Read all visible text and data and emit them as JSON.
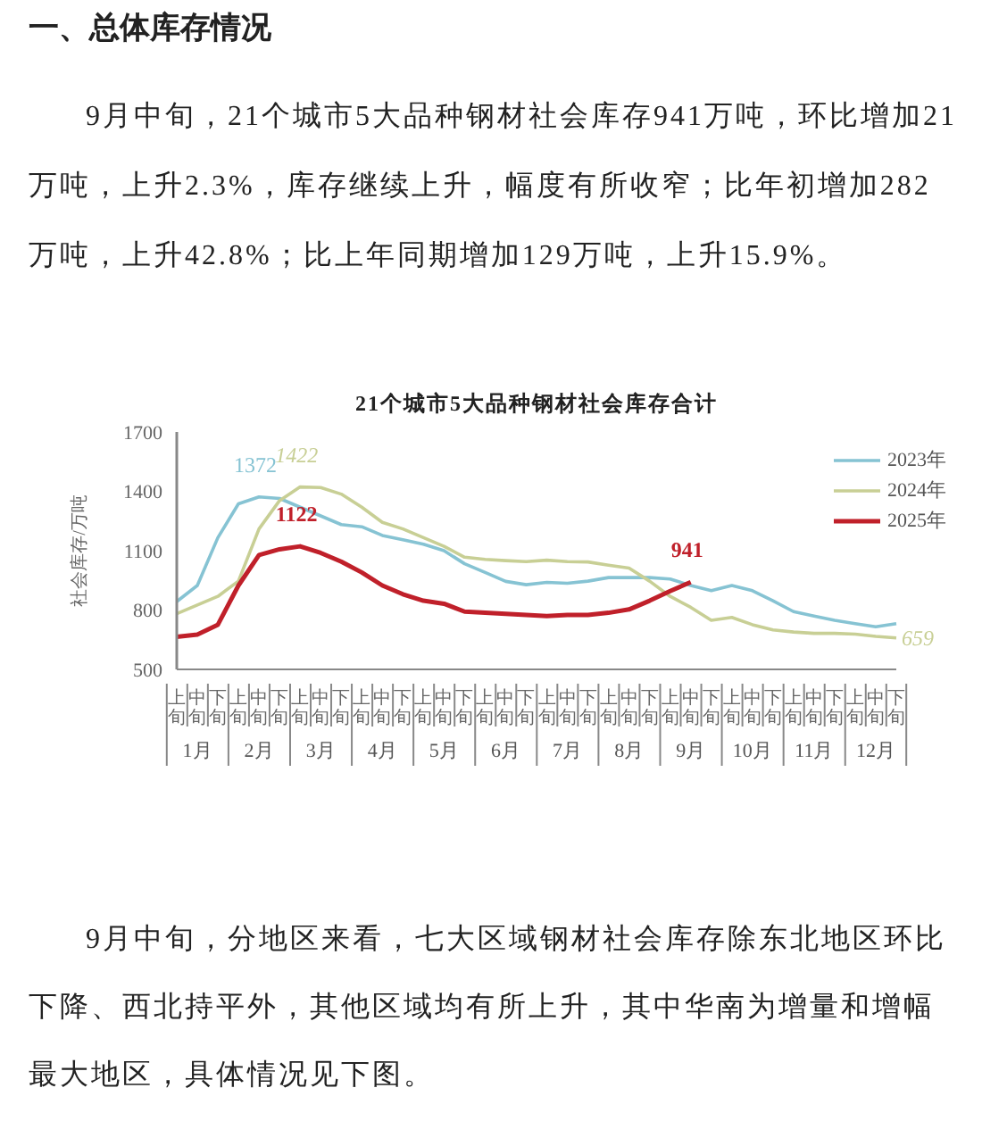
{
  "chart_data": {
    "type": "line",
    "title": "21个城市5大品种钢材社会库存合计",
    "ylabel": "社会库存/万吨",
    "categories": [
      "上旬",
      "中旬",
      "下旬",
      "上旬",
      "中旬",
      "下旬",
      "上旬",
      "中旬",
      "下旬",
      "上旬",
      "中旬",
      "下旬",
      "上旬",
      "中旬",
      "下旬",
      "上旬",
      "中旬",
      "下旬",
      "上旬",
      "中旬",
      "下旬",
      "上旬",
      "中旬",
      "下旬",
      "上旬",
      "中旬",
      "下旬",
      "上旬",
      "中旬",
      "下旬",
      "上旬",
      "中旬",
      "下旬",
      "上旬",
      "中旬",
      "下旬"
    ],
    "series": [
      {
        "name": "2023年",
        "color": "#86c3d3",
        "values": [
          843,
          924,
          1166,
          1337,
          1372,
          1364,
          1320,
          1276,
          1232,
          1221,
          1177,
          1155,
          1133,
          1100,
          1034,
          990,
          945,
          928,
          940,
          935,
          946,
          964,
          964,
          964,
          957,
          924,
          898,
          924,
          898,
          847,
          792,
          770,
          748,
          731,
          715,
          731
        ],
        "value_labels": [
          null,
          null,
          null,
          null,
          "1372",
          null,
          null,
          null,
          null,
          null,
          null,
          null,
          null,
          null,
          null,
          null,
          null,
          null,
          null,
          null,
          null,
          null,
          null,
          null,
          null,
          null,
          null,
          null,
          null,
          null,
          null,
          null,
          null,
          null,
          null,
          null
        ]
      },
      {
        "name": "2024年",
        "color": "#c8cf95",
        "values": [
          781,
          825,
          869,
          946,
          1210,
          1353,
          1422,
          1419,
          1386,
          1320,
          1243,
          1210,
          1166,
          1122,
          1067,
          1056,
          1050,
          1045,
          1052,
          1045,
          1043,
          1027,
          1012,
          946,
          869,
          814,
          748,
          763,
          726,
          700,
          689,
          682,
          682,
          678,
          667,
          659
        ],
        "value_labels": [
          null,
          null,
          null,
          null,
          null,
          null,
          "1422",
          null,
          null,
          null,
          null,
          null,
          null,
          null,
          null,
          null,
          null,
          null,
          null,
          null,
          null,
          null,
          null,
          null,
          null,
          null,
          null,
          null,
          null,
          null,
          null,
          null,
          null,
          null,
          null,
          "659"
        ]
      },
      {
        "name": "2025年",
        "color": "#c0202a",
        "values": [
          665,
          676,
          726,
          924,
          1078,
          1107,
          1122,
          1089,
          1045,
          990,
          924,
          880,
          847,
          832,
          792,
          786,
          781,
          775,
          770,
          775,
          775,
          786,
          803,
          847,
          896,
          941,
          null,
          null,
          null,
          null,
          null,
          null,
          null,
          null,
          null,
          null
        ],
        "value_labels": [
          null,
          null,
          null,
          null,
          null,
          null,
          "1122",
          null,
          null,
          null,
          null,
          null,
          null,
          null,
          null,
          null,
          null,
          null,
          null,
          null,
          null,
          null,
          null,
          null,
          null,
          "941",
          null,
          null,
          null,
          null,
          null,
          null,
          null,
          null,
          null,
          null
        ]
      }
    ],
    "ylim": [
      500,
      1700
    ],
    "yticks": [
      500,
      800,
      1100,
      1400,
      1700
    ],
    "grid": false,
    "legend": "top right",
    "marker": "none",
    "line_style": "solid",
    "annotations": [
      "一、总体库存情况",
      "9月中旬，21个城市5大品种钢材社会库存941万吨，环比增加21万吨，上升2.3%，库存继续上升，幅度有所收窄；比年初增加282万吨，上升42.8%；比上年同期增加129万吨，上升15.9%。",
      "1月",
      "2月",
      "3月",
      "4月",
      "5月",
      "6月",
      "7月",
      "8月",
      "9月",
      "10月",
      "11月",
      "12月",
      "9月中旬，分地区来看，七大区域钢材社会库存除东北地区环比下降、西北持平外，其他区域均有所上升，其中华南为增量和增幅最大地区，具体情况见下图。"
    ]
  }
}
